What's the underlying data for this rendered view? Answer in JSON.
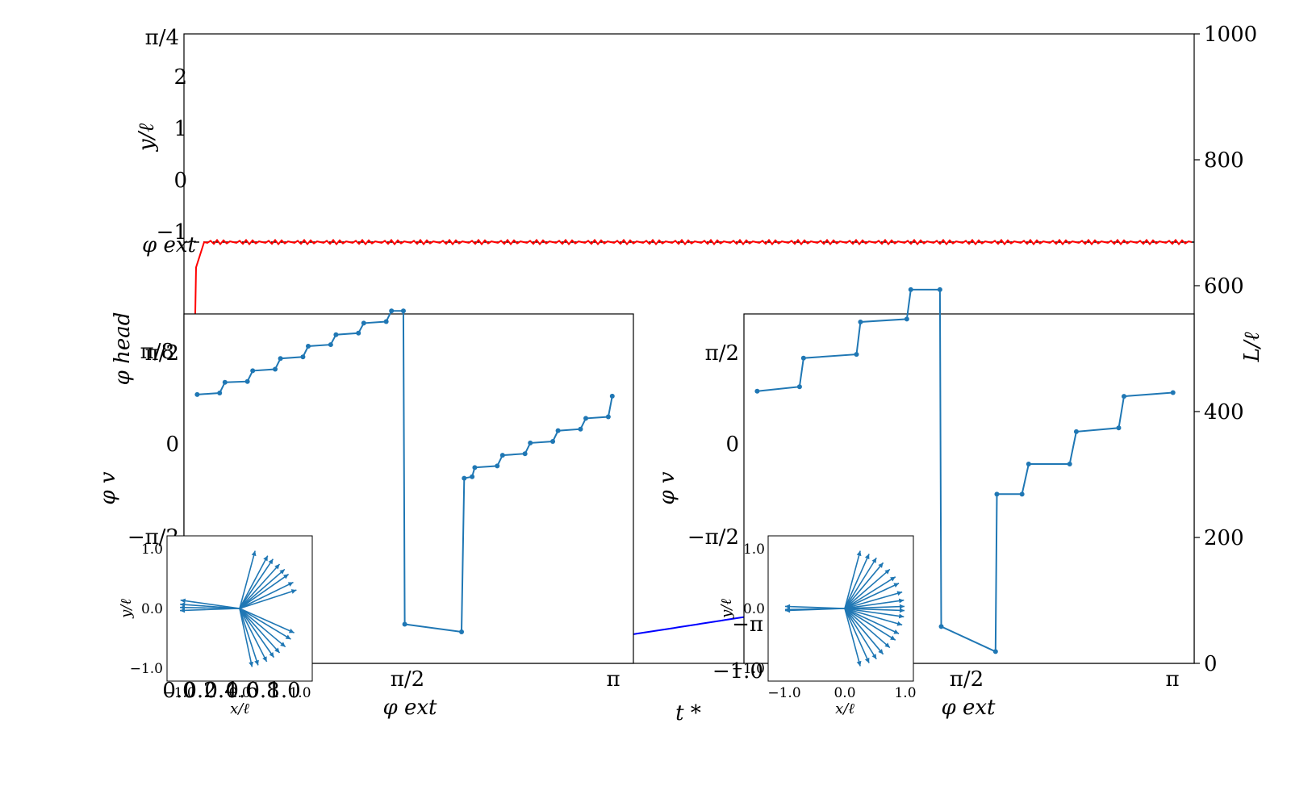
{
  "chart_data": [
    {
      "type": "line",
      "xlabel": "t *",
      "ylabel_left_top": "y/ℓ",
      "ylabel_left_mid": "φ head",
      "ylabel_right": "L/ℓ",
      "left_ticks_top": [
        "π/4",
        "2",
        "1",
        "0",
        "−1"
      ],
      "left_ticks_mid": [
        "π/8"
      ],
      "phi_ext_marker": "φ ext",
      "right_ylim": [
        0,
        1000
      ],
      "right_ticks": [
        "0",
        "200",
        "400",
        "600",
        "800",
        "1000"
      ],
      "series": [
        {
          "color": "#ff0000",
          "x": [
            0.0,
            0.005,
            0.012,
            0.02,
            1.0
          ],
          "y": [
            0,
            0,
            0.94,
            1,
            1
          ]
        },
        {
          "color": "#0000ff",
          "x": [
            0.08,
            0.2,
            0.4,
            0.6,
            0.8,
            1.0
          ],
          "y": [
            0,
            10,
            35,
            85,
            160,
            270
          ]
        }
      ],
      "phi_ext_level": 1
    },
    {
      "type": "line",
      "xlabel": "φ ext",
      "ylabel": "φ v",
      "x_ticks": [
        "π/2",
        "π"
      ],
      "y_ticks": [
        "π/2",
        "0",
        "−π/2"
      ],
      "series": [
        {
          "color": "#1f77b4",
          "x": [
            0.0,
            0.17,
            0.21,
            0.38,
            0.42,
            0.59,
            0.63,
            0.8,
            0.84,
            1.01,
            1.05,
            1.22,
            1.26,
            1.43,
            1.47,
            1.56,
            1.57,
            2.0,
            2.02,
            2.08,
            2.1,
            2.27,
            2.31,
            2.48,
            2.52,
            2.69,
            2.73,
            2.9,
            2.94,
            3.11,
            3.14
          ],
          "y": [
            0,
            0.02,
            0.16,
            0.17,
            0.31,
            0.33,
            0.47,
            0.49,
            0.63,
            0.65,
            0.78,
            0.8,
            0.93,
            0.95,
            1.09,
            1.09,
            -2.99,
            -3.09,
            -1.09,
            -1.07,
            -0.95,
            -0.93,
            -0.79,
            -0.77,
            -0.63,
            -0.61,
            -0.47,
            -0.45,
            -0.31,
            -0.29,
            -0.02
          ]
        }
      ],
      "xlim": [
        -0.1,
        3.3
      ],
      "ylim": [
        -3.5,
        1.05
      ]
    },
    {
      "type": "line",
      "xlabel": "φ ext",
      "ylabel": "φ v",
      "x_ticks": [
        "π/2",
        "π"
      ],
      "y_ticks": [
        "π/2",
        "0",
        "−π/2"
      ],
      "series": [
        {
          "color": "#1f77b4",
          "x": [
            0.0,
            0.32,
            0.35,
            0.75,
            0.78,
            1.13,
            1.16,
            1.38,
            1.39,
            1.8,
            1.81,
            2.0,
            2.05,
            2.36,
            2.41,
            2.73,
            2.77,
            3.14
          ],
          "y": [
            0,
            0.06,
            0.45,
            0.5,
            0.94,
            0.98,
            1.38,
            1.38,
            -3.2,
            -3.54,
            -1.4,
            -1.4,
            -0.99,
            -0.99,
            -0.55,
            -0.5,
            -0.07,
            -0.02
          ]
        }
      ],
      "xlim": [
        -0.1,
        3.3
      ],
      "ylim": [
        -3.7,
        1.05
      ]
    },
    {
      "type": "line",
      "xlabel": "x/ℓ",
      "ylabel": "y/ℓ",
      "x_ticks": [
        "0.0",
        "0.2",
        "0.4",
        "0.6",
        "0.8",
        "1.0",
        "−1.0",
        "0.0",
        "1.0"
      ],
      "y_ticks": [
        "1.0",
        "0.0",
        "−1.0"
      ],
      "vectors_deg": [
        172,
        176,
        179,
        182,
        -78,
        -72,
        -63,
        -55,
        -48,
        -40,
        -31,
        -24,
        18,
        26,
        35,
        41,
        48,
        56,
        62,
        75
      ],
      "xlim": [
        -1.2,
        1.2
      ],
      "ylim": [
        -1.2,
        1.2
      ]
    },
    {
      "type": "line",
      "xlabel": "x/ℓ",
      "ylabel": "y/ℓ",
      "x_ticks": [
        "−1.0",
        "0.0",
        "1.0"
      ],
      "y_ticks": [
        "1.0",
        "0.0",
        "−1.0"
      ],
      "y_ticks_overlap": [
        "−π",
        "−1.0"
      ],
      "vectors_deg": [
        178,
        181,
        182,
        75,
        66,
        58,
        50,
        41,
        32,
        25,
        16,
        8,
        2,
        -2,
        -8,
        -16,
        -25,
        -32,
        -41,
        -50,
        -58,
        -66,
        -75
      ],
      "xlim": [
        -1.4,
        1.2
      ],
      "ylim": [
        -1.2,
        1.2
      ]
    }
  ]
}
